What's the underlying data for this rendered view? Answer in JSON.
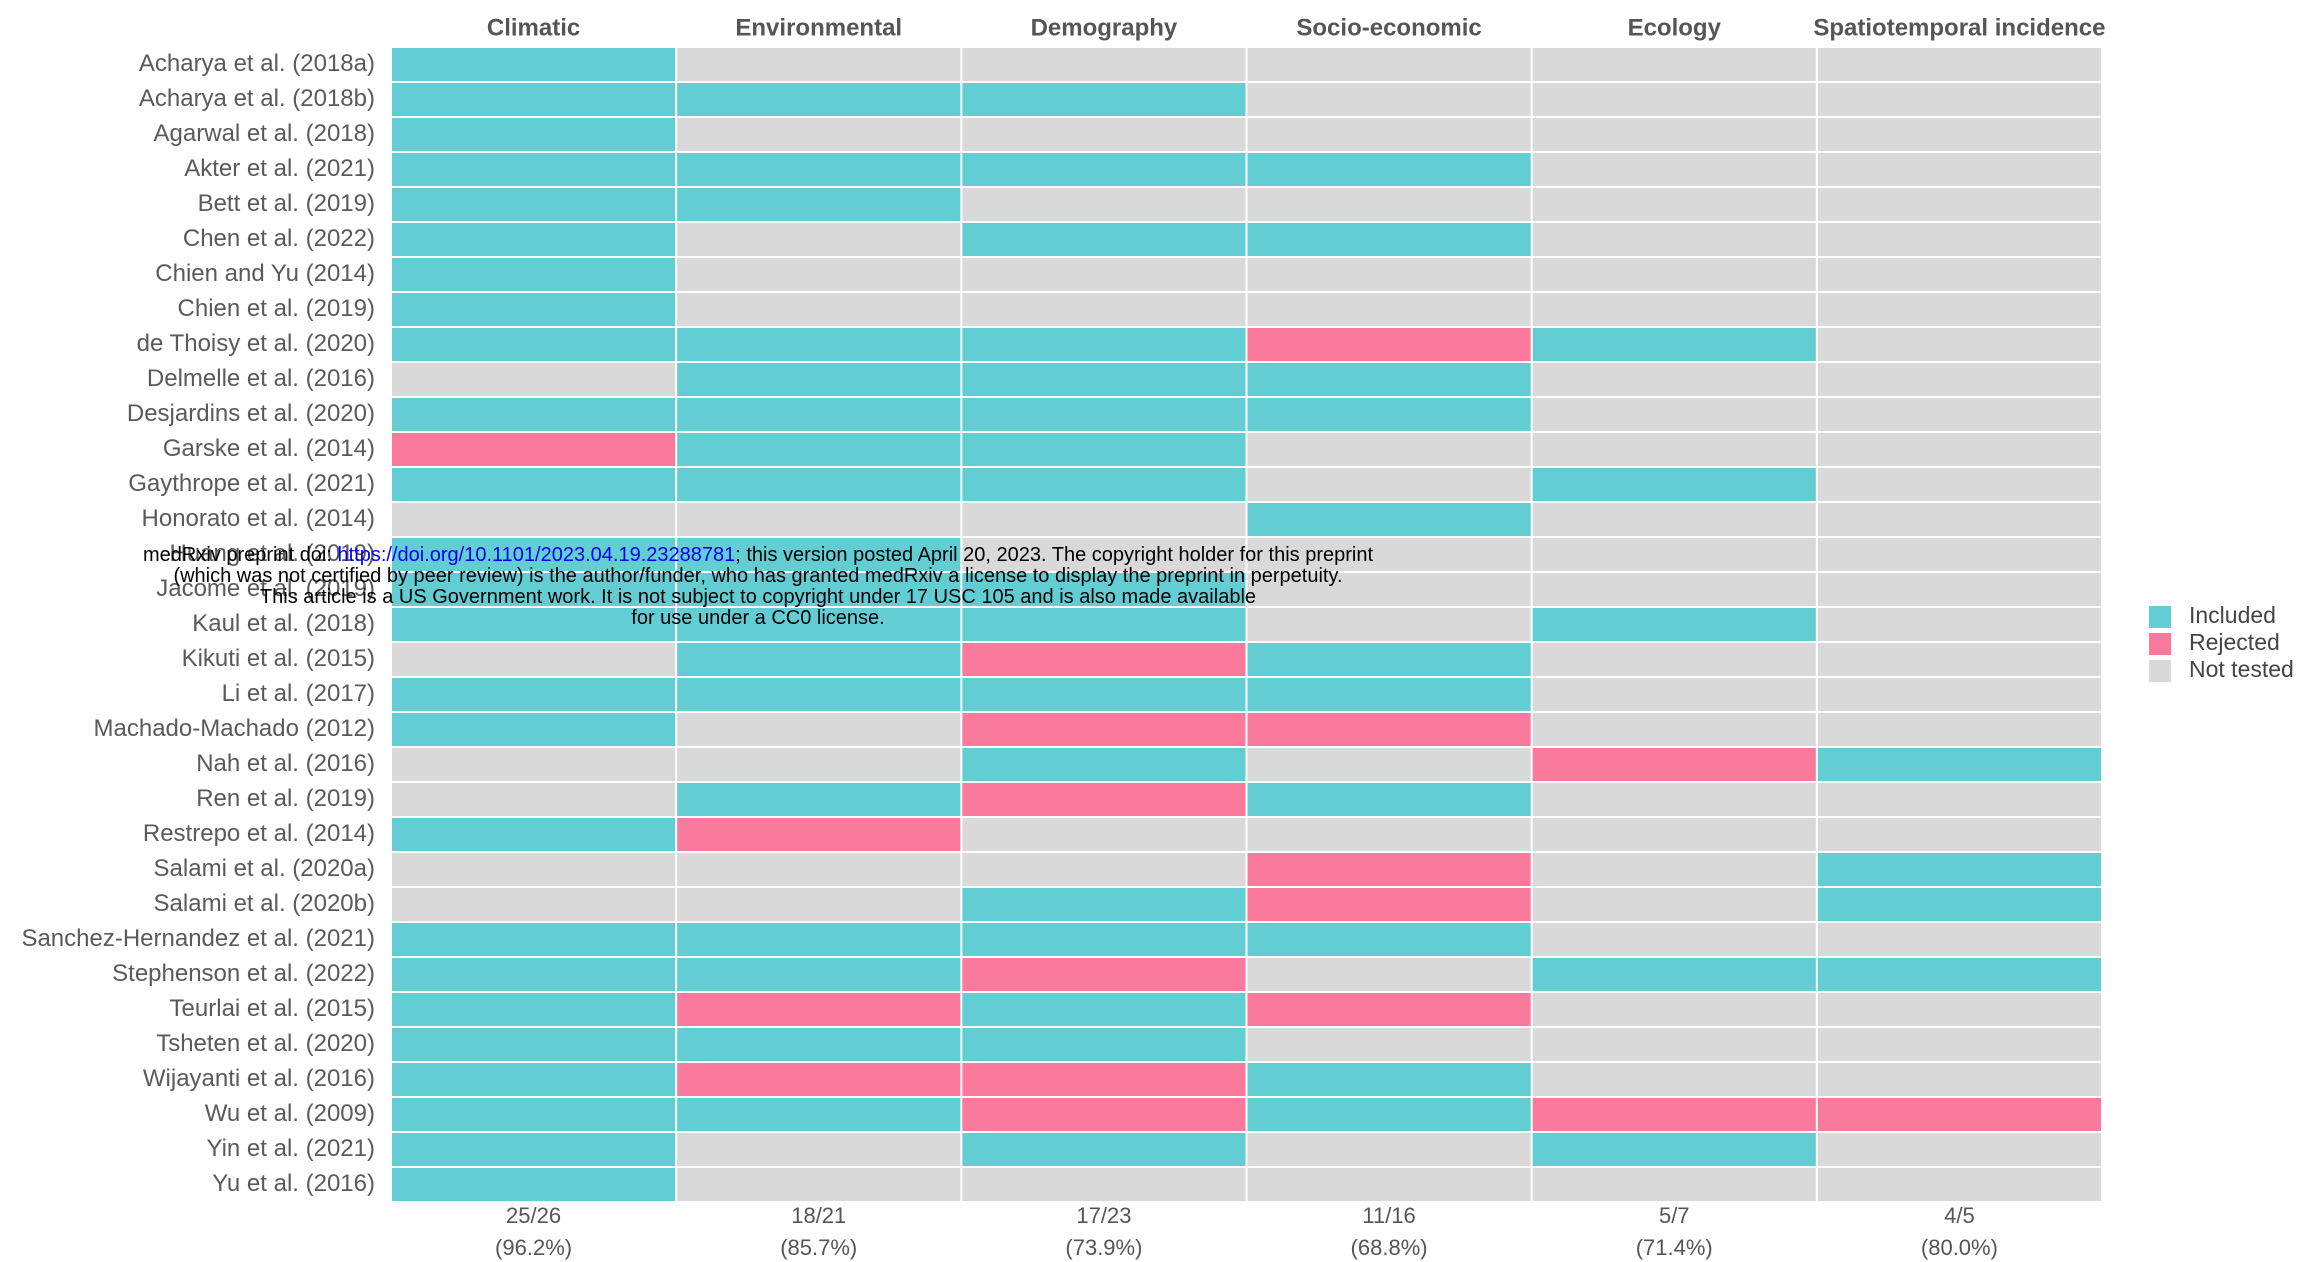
{
  "chart_data": {
    "type": "heatmap",
    "columns": [
      "Climatic",
      "Environmental",
      "Demography",
      "Socio-economic",
      "Ecology",
      "Spatiotemporal incidence"
    ],
    "rows": [
      "Acharya et al. (2018a)",
      "Acharya et al. (2018b)",
      "Agarwal et al. (2018)",
      "Akter et al. (2021)",
      "Bett et al. (2019)",
      "Chen et al. (2022)",
      "Chien and Yu (2014)",
      "Chien et al. (2019)",
      "de Thoisy et al. (2020)",
      "Delmelle et al. (2016)",
      "Desjardins et al. (2020)",
      "Garske et al. (2014)",
      "Gaythrope et al. (2021)",
      "Honorato et al. (2014)",
      "Huang et al. (2019)",
      "Jacome et al. (2019)",
      "Kaul et al. (2018)",
      "Kikuti et al. (2015)",
      "Li et al. (2017)",
      "Machado-Machado (2012)",
      "Nah et al. (2016)",
      "Ren et al. (2019)",
      "Restrepo et al. (2014)",
      "Salami et al. (2020a)",
      "Salami et al. (2020b)",
      "Sanchez-Hernandez et al. (2021)",
      "Stephenson et al. (2022)",
      "Teurlai et al. (2015)",
      "Tsheten et al. (2020)",
      "Wijayanti et al. (2016)",
      "Wu et al. (2009)",
      "Yin et al. (2021)",
      "Yu et al. (2016)"
    ],
    "legend": [
      {
        "name": "Included",
        "color": "#63cdd4"
      },
      {
        "name": "Rejected",
        "color": "#f97a9c"
      },
      {
        "name": "Not tested",
        "color": "#d9d9d9"
      }
    ],
    "cells": [
      [
        "Included",
        "Not tested",
        "Not tested",
        "Not tested",
        "Not tested",
        "Not tested"
      ],
      [
        "Included",
        "Included",
        "Included",
        "Not tested",
        "Not tested",
        "Not tested"
      ],
      [
        "Included",
        "Not tested",
        "Not tested",
        "Not tested",
        "Not tested",
        "Not tested"
      ],
      [
        "Included",
        "Included",
        "Included",
        "Included",
        "Not tested",
        "Not tested"
      ],
      [
        "Included",
        "Included",
        "Not tested",
        "Not tested",
        "Not tested",
        "Not tested"
      ],
      [
        "Included",
        "Not tested",
        "Included",
        "Included",
        "Not tested",
        "Not tested"
      ],
      [
        "Included",
        "Not tested",
        "Not tested",
        "Not tested",
        "Not tested",
        "Not tested"
      ],
      [
        "Included",
        "Not tested",
        "Not tested",
        "Not tested",
        "Not tested",
        "Not tested"
      ],
      [
        "Included",
        "Included",
        "Included",
        "Rejected",
        "Included",
        "Not tested"
      ],
      [
        "Not tested",
        "Included",
        "Included",
        "Included",
        "Not tested",
        "Not tested"
      ],
      [
        "Included",
        "Included",
        "Included",
        "Included",
        "Not tested",
        "Not tested"
      ],
      [
        "Rejected",
        "Included",
        "Included",
        "Not tested",
        "Not tested",
        "Not tested"
      ],
      [
        "Included",
        "Included",
        "Included",
        "Not tested",
        "Included",
        "Not tested"
      ],
      [
        "Not tested",
        "Not tested",
        "Not tested",
        "Included",
        "Not tested",
        "Not tested"
      ],
      [
        "Included",
        "Included",
        "Not tested",
        "Not tested",
        "Not tested",
        "Not tested"
      ],
      [
        "Included",
        "Included",
        "Included",
        "Not tested",
        "Not tested",
        "Not tested"
      ],
      [
        "Included",
        "Included",
        "Included",
        "Not tested",
        "Included",
        "Not tested"
      ],
      [
        "Not tested",
        "Included",
        "Rejected",
        "Included",
        "Not tested",
        "Not tested"
      ],
      [
        "Included",
        "Included",
        "Included",
        "Included",
        "Not tested",
        "Not tested"
      ],
      [
        "Included",
        "Not tested",
        "Rejected",
        "Rejected",
        "Not tested",
        "Not tested"
      ],
      [
        "Not tested",
        "Not tested",
        "Included",
        "Not tested",
        "Rejected",
        "Included"
      ],
      [
        "Not tested",
        "Included",
        "Rejected",
        "Included",
        "Not tested",
        "Not tested"
      ],
      [
        "Included",
        "Rejected",
        "Not tested",
        "Not tested",
        "Not tested",
        "Not tested"
      ],
      [
        "Not tested",
        "Not tested",
        "Not tested",
        "Rejected",
        "Not tested",
        "Included"
      ],
      [
        "Not tested",
        "Not tested",
        "Included",
        "Rejected",
        "Not tested",
        "Included"
      ],
      [
        "Included",
        "Included",
        "Included",
        "Included",
        "Not tested",
        "Not tested"
      ],
      [
        "Included",
        "Included",
        "Rejected",
        "Not tested",
        "Included",
        "Included"
      ],
      [
        "Included",
        "Rejected",
        "Included",
        "Rejected",
        "Not tested",
        "Not tested"
      ],
      [
        "Included",
        "Included",
        "Included",
        "Not tested",
        "Not tested",
        "Not tested"
      ],
      [
        "Included",
        "Rejected",
        "Rejected",
        "Included",
        "Not tested",
        "Not tested"
      ],
      [
        "Included",
        "Included",
        "Rejected",
        "Included",
        "Rejected",
        "Rejected"
      ],
      [
        "Included",
        "Not tested",
        "Included",
        "Not tested",
        "Included",
        "Not tested"
      ],
      [
        "Included",
        "Not tested",
        "Not tested",
        "Not tested",
        "Not tested",
        "Not tested"
      ]
    ],
    "column_totals": [
      {
        "ratio": "25/26",
        "percent": "(96.2%)"
      },
      {
        "ratio": "18/21",
        "percent": "(85.7%)"
      },
      {
        "ratio": "17/23",
        "percent": "(73.9%)"
      },
      {
        "ratio": "11/16",
        "percent": "(68.8%)"
      },
      {
        "ratio": "5/7",
        "percent": "(71.4%)"
      },
      {
        "ratio": "4/5",
        "percent": "(80.0%)"
      }
    ]
  },
  "notice": {
    "prefix": "medRxiv preprint doi: ",
    "link": "https://doi.org/10.1101/2023.04.19.23288781",
    "line1_rest": "; this version posted April 20, 2023. The copyright holder for this preprint",
    "line2": "(which was not certified by peer review) is the author/funder, who has granted medRxiv a license to display the preprint in perpetuity.",
    "line3": "This article is a US Government work. It is not subject to copyright under 17 USC 105 and is also made available",
    "line4": "for use under a CC0 license."
  }
}
